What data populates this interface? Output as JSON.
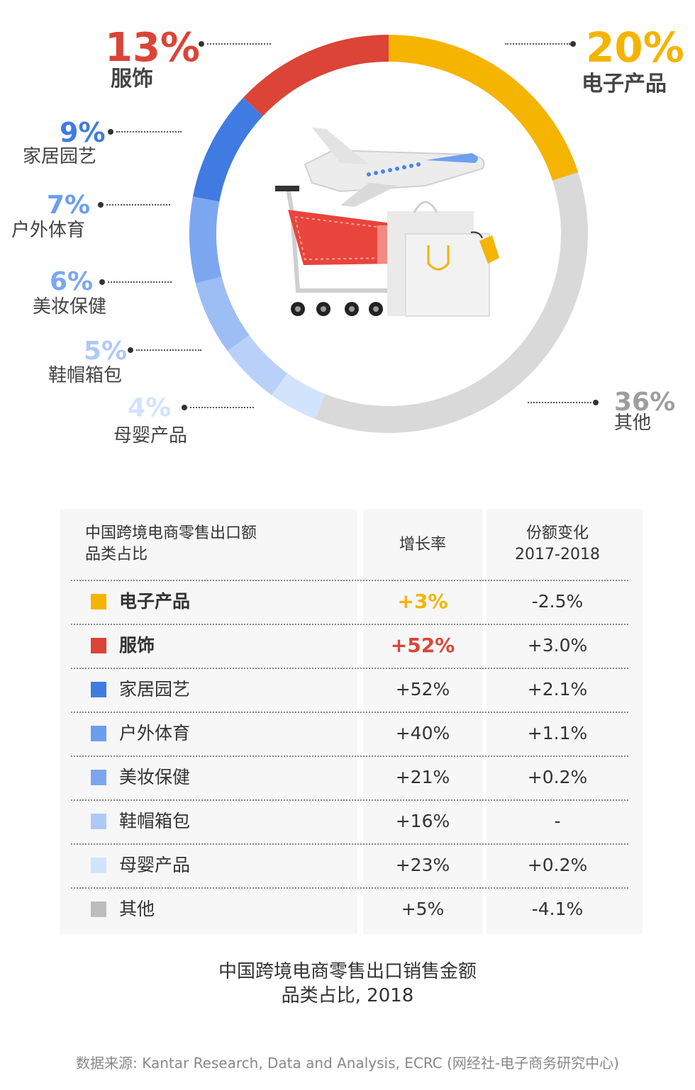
{
  "chart_data": {
    "type": "pie",
    "segments": [
      {
        "label": "电子产品",
        "pct_text": "20%",
        "value": 20,
        "color": "#F4B400"
      },
      {
        "label": "其他",
        "pct_text": "36%",
        "value": 36,
        "color": "#D9D9D9"
      },
      {
        "label": "母婴产品",
        "pct_text": "4%",
        "value": 4,
        "color": "#D2E3FC"
      },
      {
        "label": "鞋帽箱包",
        "pct_text": "5%",
        "value": 5,
        "color": "#B9D1F8"
      },
      {
        "label": "美妆保健",
        "pct_text": "6%",
        "value": 6,
        "color": "#9DBDF5"
      },
      {
        "label": "户外体育",
        "pct_text": "7%",
        "value": 7,
        "color": "#7CA7F0"
      },
      {
        "label": "家居园艺",
        "pct_text": "9%",
        "value": 9,
        "color": "#3F7BE0"
      },
      {
        "label": "服饰",
        "pct_text": "13%",
        "value": 13,
        "color": "#DB4437"
      }
    ]
  },
  "table": {
    "header_col1": [
      "中国跨境电商零售出口额",
      "品类占比"
    ],
    "header_col2": "增长率",
    "header_col3": [
      "份额变化",
      "2017-2018"
    ],
    "rows": [
      {
        "name": "电子产品",
        "growth": "+3%",
        "change": "-2.5%",
        "swatch": "#F4B400",
        "bold": true,
        "growth_color": "#F4B400"
      },
      {
        "name": "服饰",
        "growth": "+52%",
        "change": "+3.0%",
        "swatch": "#DB4437",
        "bold": true,
        "growth_color": "#DB4437"
      },
      {
        "name": "家居园艺",
        "growth": "+52%",
        "change": "+2.1%",
        "swatch": "#3F7BE0",
        "bold": false,
        "growth_color": "#333333"
      },
      {
        "name": "户外体育",
        "growth": "+40%",
        "change": "+1.1%",
        "swatch": "#6C9EEE",
        "bold": false,
        "growth_color": "#333333"
      },
      {
        "name": "美妆保健",
        "growth": "+21%",
        "change": "+0.2%",
        "swatch": "#7CA7F0",
        "bold": false,
        "growth_color": "#333333"
      },
      {
        "name": "鞋帽箱包",
        "growth": "+16%",
        "change": "-",
        "swatch": "#AFC9F6",
        "bold": false,
        "growth_color": "#333333"
      },
      {
        "name": "母婴产品",
        "growth": "+23%",
        "change": "+0.2%",
        "swatch": "#D2E3FC",
        "bold": false,
        "growth_color": "#333333"
      },
      {
        "name": "其他",
        "growth": "+5%",
        "change": "-4.1%",
        "swatch": "#BDBDBD",
        "bold": false,
        "growth_color": "#333333"
      }
    ]
  },
  "caption": [
    "中国跨境电商零售出口销售金额",
    "品类占比, 2018"
  ],
  "source": "数据来源: Kantar Research, Data and Analysis, ECRC (网经社-电子商务研究中心)"
}
